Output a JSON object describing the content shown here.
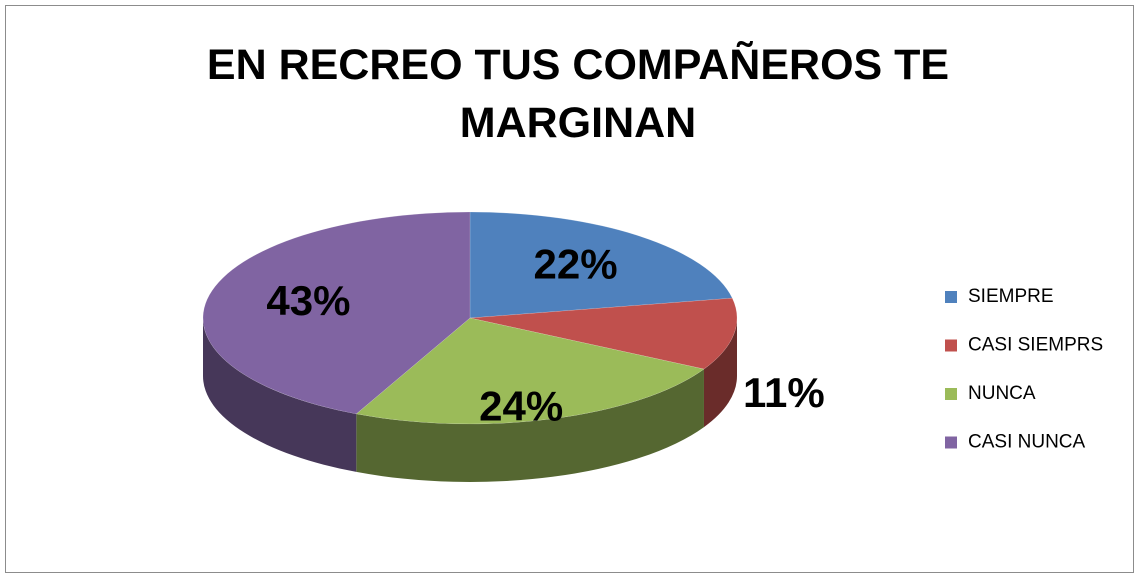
{
  "chart_data": {
    "type": "pie",
    "title": "EN RECREO TUS COMPAÑEROS TE MARGINAN",
    "categories": [
      "SIEMPRE",
      "CASI SIEMPRS",
      "NUNCA",
      "CASI NUNCA"
    ],
    "values": [
      22,
      11,
      24,
      43
    ],
    "value_labels": [
      "22%",
      "11%",
      "24%",
      "43%"
    ],
    "colors": [
      "#4f81bd",
      "#c0504d",
      "#9bbb59",
      "#8064a2"
    ],
    "legend": "right"
  }
}
